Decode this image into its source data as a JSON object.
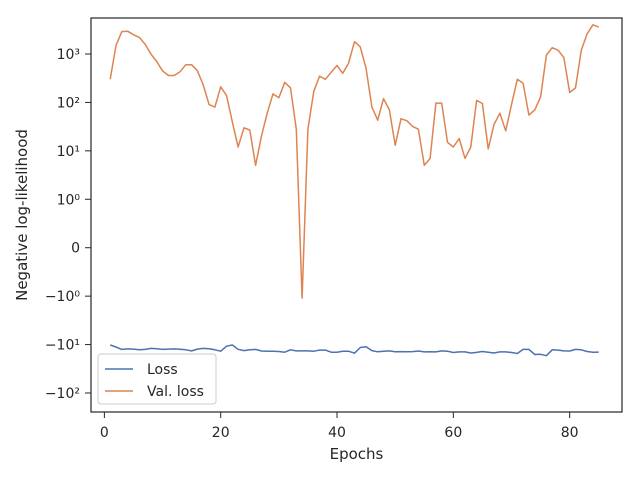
{
  "chart_data": {
    "type": "line",
    "xlabel": "Epochs",
    "ylabel": "Negative log-likelihood",
    "yscale": "symlog",
    "xlim": [
      -2.3,
      89
    ],
    "xticks": [
      0,
      20,
      40,
      60,
      80
    ],
    "yticks": [
      {
        "value": -100,
        "label": "−10²"
      },
      {
        "value": -10,
        "label": "−10¹"
      },
      {
        "value": -1,
        "label": "−10⁰"
      },
      {
        "value": 0,
        "label": "0"
      },
      {
        "value": 1,
        "label": "10⁰"
      },
      {
        "value": 10,
        "label": "10¹"
      },
      {
        "value": 100,
        "label": "10²"
      },
      {
        "value": 1000,
        "label": "10³"
      }
    ],
    "legend_position": "lower-left",
    "grid": false,
    "x": [
      1,
      2,
      3,
      4,
      5,
      6,
      7,
      8,
      9,
      10,
      11,
      12,
      13,
      14,
      15,
      16,
      17,
      18,
      19,
      20,
      21,
      22,
      23,
      24,
      25,
      26,
      27,
      28,
      29,
      30,
      31,
      32,
      33,
      34,
      35,
      36,
      37,
      38,
      39,
      40,
      41,
      42,
      43,
      44,
      45,
      46,
      47,
      48,
      49,
      50,
      51,
      52,
      53,
      54,
      55,
      56,
      57,
      58,
      59,
      60,
      61,
      62,
      63,
      64,
      65,
      66,
      67,
      68,
      69,
      70,
      71,
      72,
      73,
      74,
      75,
      76,
      77,
      78,
      79,
      80,
      81,
      82,
      83,
      84,
      85
    ],
    "series": [
      {
        "name": "Loss",
        "color": "#4c72b0",
        "values": [
          -10.2,
          -11.2,
          -12.6,
          -12.3,
          -12.4,
          -12.8,
          -12.6,
          -12.0,
          -12.2,
          -12.6,
          -12.4,
          -12.3,
          -12.5,
          -12.8,
          -13.5,
          -12.4,
          -12.0,
          -12.2,
          -12.8,
          -13.7,
          -10.8,
          -10.2,
          -12.5,
          -13.3,
          -12.8,
          -12.6,
          -13.6,
          -13.7,
          -13.8,
          -13.9,
          -14.4,
          -12.8,
          -13.5,
          -13.5,
          -13.5,
          -13.7,
          -13.0,
          -13.0,
          -14.4,
          -14.4,
          -13.8,
          -13.7,
          -15.1,
          -11.5,
          -11.1,
          -13.3,
          -14.1,
          -13.8,
          -13.5,
          -14.1,
          -14.0,
          -14.1,
          -14.0,
          -13.6,
          -14.2,
          -14.1,
          -14.2,
          -13.5,
          -13.7,
          -14.6,
          -14.2,
          -14.2,
          -14.9,
          -14.5,
          -13.9,
          -14.4,
          -14.9,
          -14.2,
          -14.2,
          -14.6,
          -15.3,
          -12.6,
          -12.6,
          -16.0,
          -15.9,
          -17.0,
          -12.8,
          -13.0,
          -13.5,
          -13.6,
          -12.6,
          -12.8,
          -13.9,
          -14.4,
          -14.3
        ]
      },
      {
        "name": "Val. loss",
        "color": "#dd8452",
        "values": [
          300,
          1500,
          2900,
          2950,
          2500,
          2200,
          1600,
          1000,
          700,
          450,
          360,
          360,
          430,
          600,
          600,
          450,
          230,
          90,
          80,
          210,
          140,
          40,
          12,
          30,
          27,
          5,
          20,
          60,
          150,
          125,
          260,
          200,
          28,
          -1.1,
          28,
          170,
          350,
          300,
          420,
          580,
          400,
          650,
          1800,
          1400,
          500,
          80,
          43,
          120,
          70,
          13,
          46,
          42,
          32,
          28,
          5,
          7,
          97,
          97,
          15,
          12,
          18,
          7,
          12,
          110,
          95,
          11,
          35,
          60,
          26,
          90,
          300,
          250,
          55,
          70,
          130,
          950,
          1350,
          1200,
          850,
          160,
          200,
          1200,
          2600,
          4000,
          3600
        ]
      }
    ]
  }
}
